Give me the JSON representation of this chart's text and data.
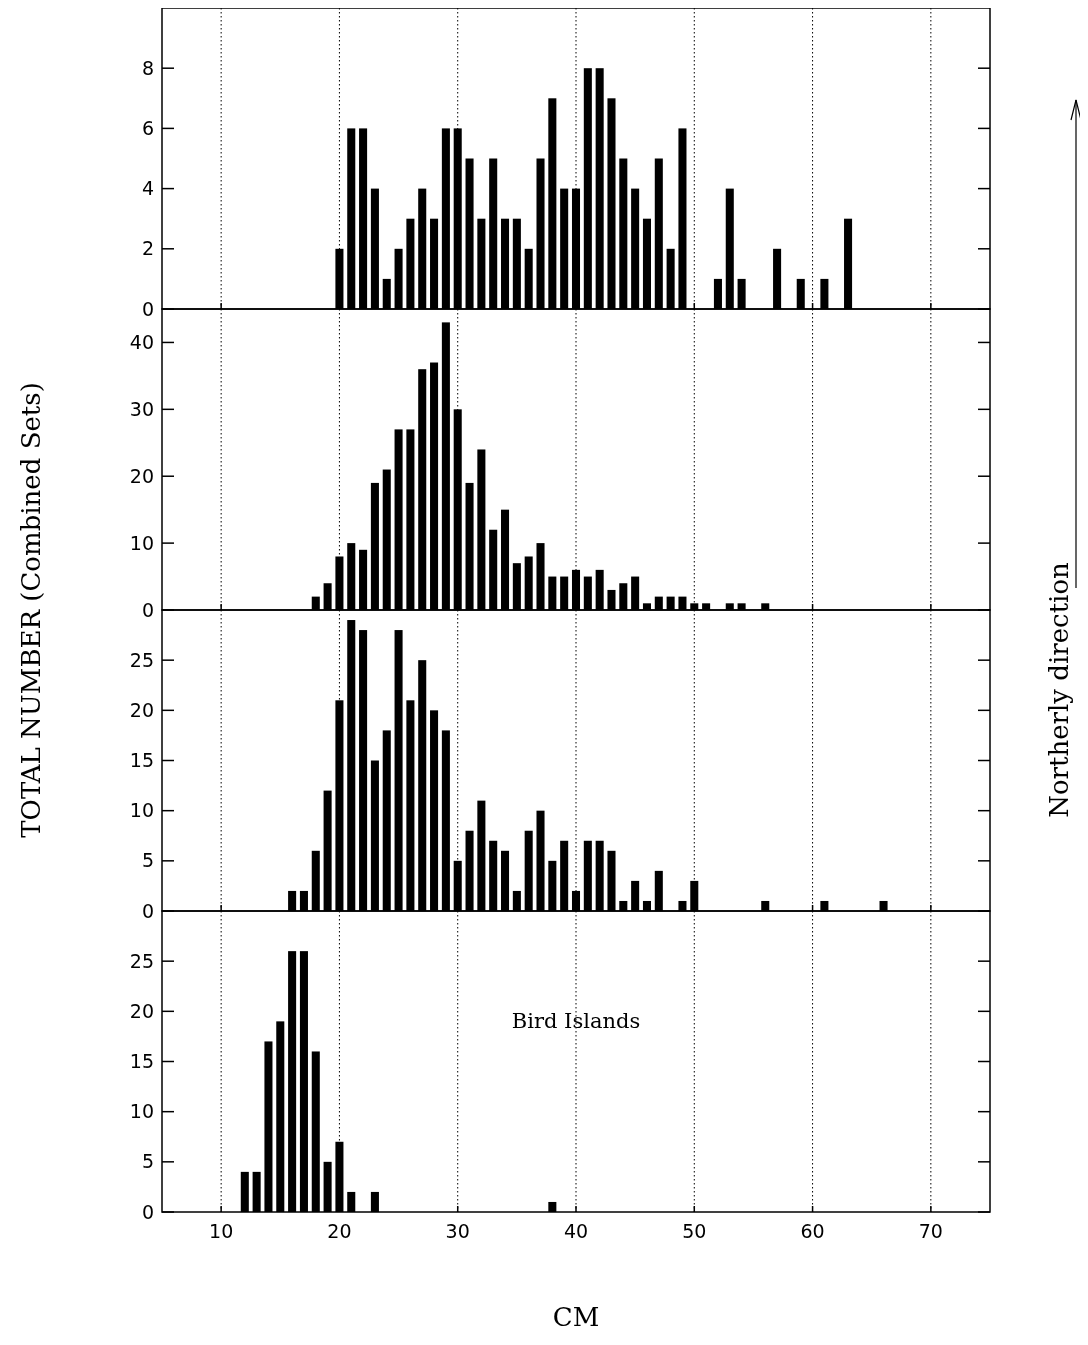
{
  "chart_data": [
    {
      "type": "bar",
      "ylabel": "TOTAL NUMBER (Combined  Sets)",
      "annotations": [
        "Northerly direction"
      ],
      "xlim": [
        5,
        75
      ],
      "xticks": [
        10,
        20,
        30,
        40,
        50,
        60,
        70
      ],
      "ylim": [
        0,
        10
      ],
      "yticks": [
        0,
        2,
        4,
        6,
        8
      ],
      "grid": "x",
      "tick_labels": "y",
      "x": [
        20,
        21,
        22,
        23,
        24,
        25,
        26,
        27,
        28,
        29,
        30,
        31,
        32,
        33,
        34,
        35,
        36,
        37,
        38,
        39,
        40,
        41,
        42,
        43,
        44,
        45,
        46,
        47,
        48,
        49,
        52,
        53,
        54,
        57,
        59,
        61,
        63
      ],
      "values": [
        2,
        6,
        6,
        4,
        1,
        2,
        3,
        4,
        3,
        6,
        6,
        5,
        3,
        5,
        3,
        3,
        2,
        5,
        7,
        4,
        4,
        8,
        8,
        7,
        5,
        4,
        3,
        5,
        2,
        6,
        1,
        4,
        1,
        2,
        1,
        1,
        3
      ],
      "color": "#000000"
    },
    {
      "type": "bar",
      "xlim": [
        5,
        75
      ],
      "xticks": [
        10,
        20,
        30,
        40,
        50,
        60,
        70
      ],
      "ylim": [
        0,
        45
      ],
      "yticks": [
        0,
        10,
        20,
        30,
        40
      ],
      "grid": "x",
      "tick_labels": "y",
      "x": [
        18,
        19,
        20,
        21,
        22,
        23,
        24,
        25,
        26,
        27,
        28,
        29,
        30,
        31,
        32,
        33,
        34,
        35,
        36,
        37,
        38,
        39,
        40,
        41,
        42,
        43,
        44,
        45,
        46,
        47,
        48,
        49,
        50,
        51,
        53,
        54,
        56
      ],
      "values": [
        2,
        4,
        8,
        10,
        9,
        19,
        21,
        27,
        27,
        36,
        37,
        43,
        30,
        19,
        24,
        12,
        15,
        7,
        8,
        10,
        5,
        5,
        6,
        5,
        6,
        3,
        4,
        5,
        1,
        2,
        2,
        2,
        1,
        1,
        1,
        1,
        1
      ],
      "color": "#000000"
    },
    {
      "type": "bar",
      "xlim": [
        5,
        75
      ],
      "xticks": [
        10,
        20,
        30,
        40,
        50,
        60,
        70
      ],
      "ylim": [
        0,
        30
      ],
      "yticks": [
        0,
        5,
        10,
        15,
        20,
        25
      ],
      "grid": "x",
      "tick_labels": "y",
      "x": [
        16,
        17,
        18,
        19,
        20,
        21,
        22,
        23,
        24,
        25,
        26,
        27,
        28,
        29,
        30,
        31,
        32,
        33,
        34,
        35,
        36,
        37,
        38,
        39,
        40,
        41,
        42,
        43,
        44,
        45,
        46,
        47,
        49,
        50,
        56,
        61,
        66
      ],
      "values": [
        2,
        2,
        6,
        12,
        21,
        29,
        28,
        15,
        18,
        28,
        21,
        25,
        20,
        18,
        5,
        8,
        11,
        7,
        6,
        2,
        8,
        10,
        5,
        7,
        2,
        7,
        7,
        6,
        1,
        3,
        1,
        4,
        1,
        3,
        1,
        1,
        1
      ],
      "color": "#000000"
    },
    {
      "type": "bar",
      "xlabel": "CM",
      "annotations": [
        "Bird Islands"
      ],
      "xlim": [
        5,
        75
      ],
      "xticks": [
        10,
        20,
        30,
        40,
        50,
        60,
        70
      ],
      "ylim": [
        0,
        30
      ],
      "yticks": [
        0,
        5,
        10,
        15,
        20,
        25
      ],
      "grid": "x",
      "x": [
        12,
        13,
        14,
        15,
        16,
        17,
        18,
        19,
        20,
        21,
        23,
        38
      ],
      "values": [
        4,
        4,
        17,
        19,
        26,
        26,
        16,
        5,
        7,
        2,
        2,
        1
      ],
      "color": "#000000"
    }
  ]
}
